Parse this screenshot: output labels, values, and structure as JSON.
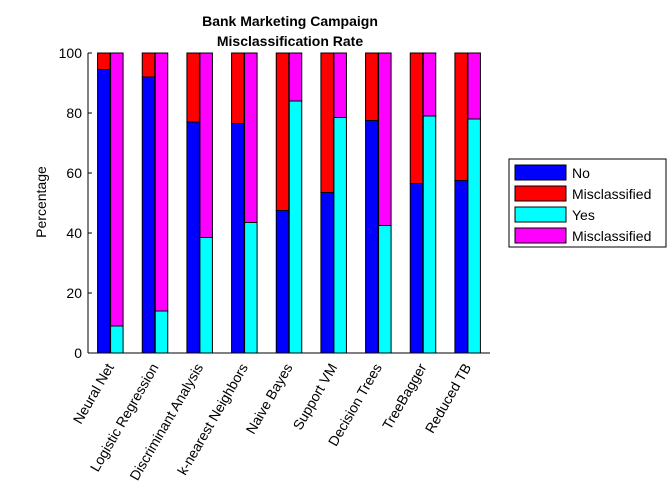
{
  "chart_data": {
    "type": "bar",
    "stacked": true,
    "title": [
      "Bank Marketing Campaign",
      "Misclassification Rate"
    ],
    "xlabel": "",
    "ylabel": "Percentage",
    "ylim": [
      0,
      100
    ],
    "yticks": [
      0,
      20,
      40,
      60,
      80,
      100
    ],
    "grid": false,
    "legend_position": "right",
    "categories": [
      "Neural Net",
      "Logistic Regression",
      "Discriminant Analysis",
      "k-nearest Neighbors",
      "Naive Bayes",
      "Support VM",
      "Decision Trees",
      "TreeBagger",
      "Reduced TB"
    ],
    "groups": [
      {
        "group": "No",
        "series": [
          {
            "name": "No",
            "color": "#0000ff",
            "values": [
              94.5,
              92,
              77,
              76.5,
              47.5,
              53.5,
              77.5,
              56.5,
              57.5
            ]
          },
          {
            "name": "Misclassified",
            "color": "#ff0000",
            "values": [
              5.5,
              8,
              23,
              23.5,
              52.5,
              46.5,
              22.5,
              43.5,
              42.5
            ]
          }
        ]
      },
      {
        "group": "Yes",
        "series": [
          {
            "name": "Yes",
            "color": "#00ffff",
            "values": [
              9,
              14,
              38.5,
              43.5,
              84,
              78.5,
              42.5,
              79,
              78
            ]
          },
          {
            "name": "Misclassified",
            "color": "#ff00ff",
            "values": [
              91,
              86,
              61.5,
              56.5,
              16,
              21.5,
              57.5,
              21,
              22
            ]
          }
        ]
      }
    ],
    "legend": [
      {
        "label": "No",
        "color": "#0000ff"
      },
      {
        "label": "Misclassified",
        "color": "#ff0000"
      },
      {
        "label": "Yes",
        "color": "#00ffff"
      },
      {
        "label": "Misclassified",
        "color": "#ff00ff"
      }
    ]
  }
}
